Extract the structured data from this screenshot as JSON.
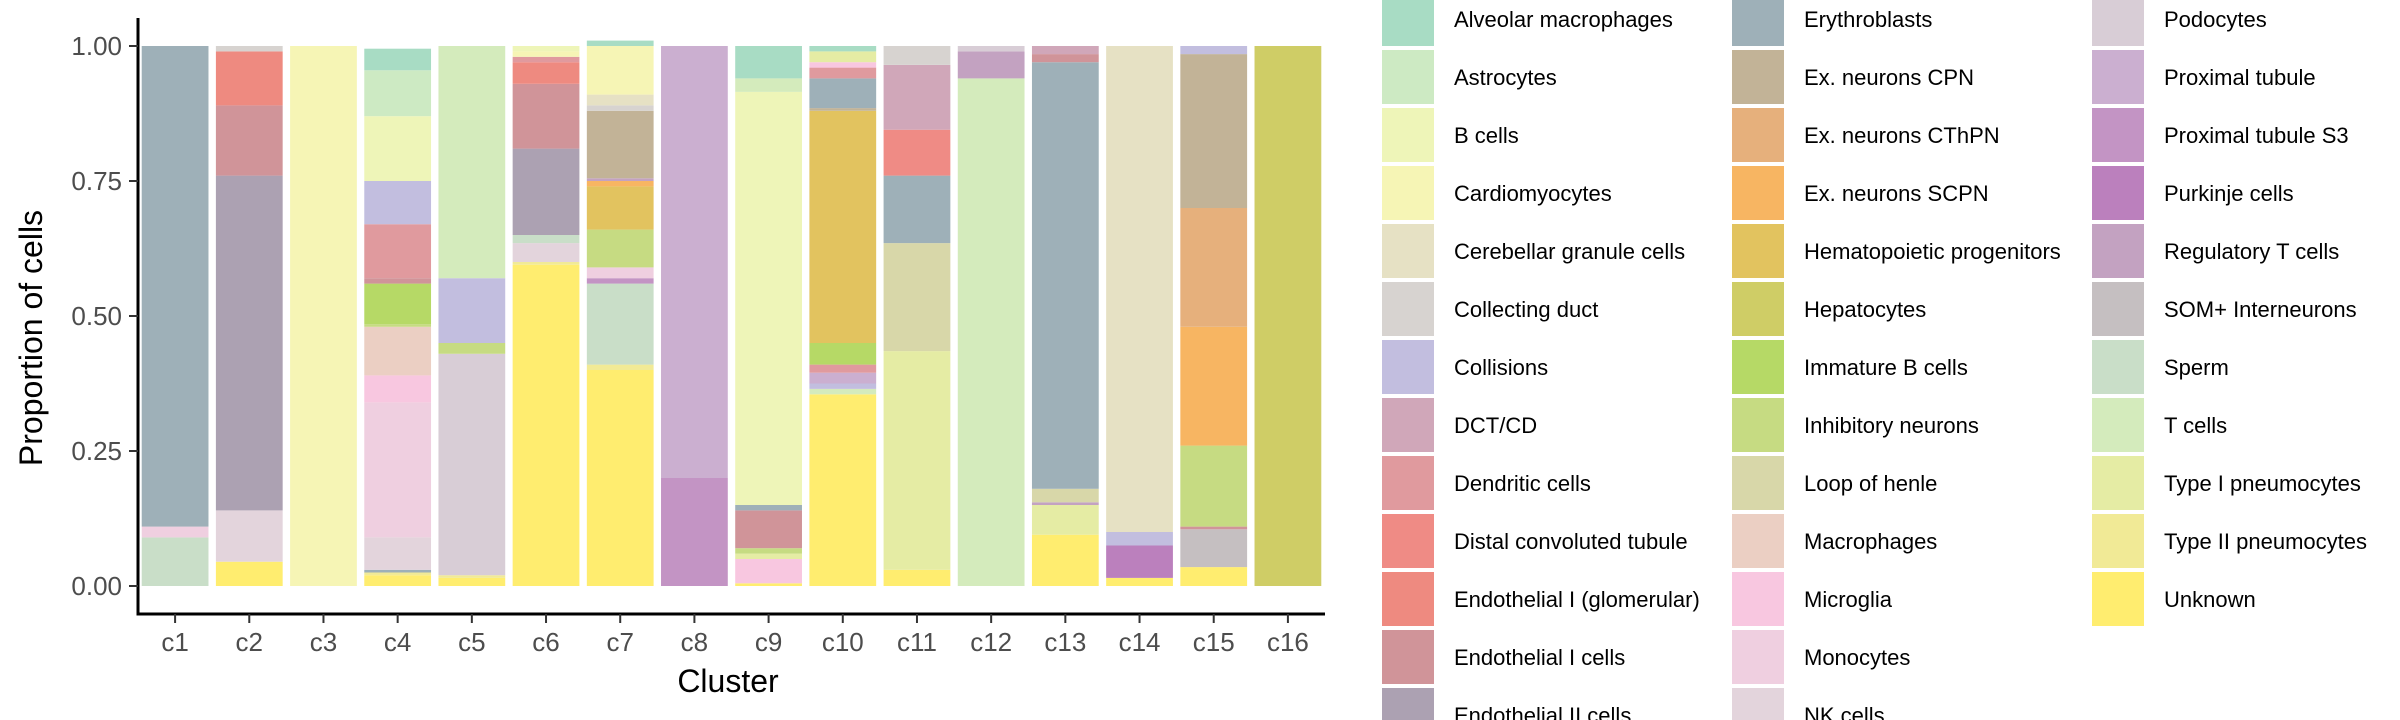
{
  "chart_data": {
    "type": "bar",
    "stacked": true,
    "title": "",
    "xlabel": "Cluster",
    "ylabel": "Proportion of cells",
    "ylim": [
      0,
      1
    ],
    "yticks": [
      0.0,
      0.25,
      0.5,
      0.75,
      1.0
    ],
    "ytick_labels": [
      "0.00",
      "0.25",
      "0.50",
      "0.75",
      "1.00"
    ],
    "grid": false,
    "legend_position": "right",
    "categories": [
      "c1",
      "c2",
      "c3",
      "c4",
      "c5",
      "c6",
      "c7",
      "c8",
      "c9",
      "c10",
      "c11",
      "c12",
      "c13",
      "c14",
      "c15",
      "c16"
    ],
    "cell_types": [
      {
        "name": "Alveolar macrophages",
        "color": "#a8dcc4"
      },
      {
        "name": "Astrocytes",
        "color": "#cdeac3"
      },
      {
        "name": "B cells",
        "color": "#eef5b8"
      },
      {
        "name": "Cardiomyocytes",
        "color": "#f6f5b5"
      },
      {
        "name": "Cerebellar granule cells",
        "color": "#e6e1c4"
      },
      {
        "name": "Collecting duct",
        "color": "#d7d3d0"
      },
      {
        "name": "Collisions",
        "color": "#c2bedf"
      },
      {
        "name": "DCT/CD",
        "color": "#d0a7b9"
      },
      {
        "name": "Dendritic cells",
        "color": "#e09a9e"
      },
      {
        "name": "Distal convoluted tubule",
        "color": "#ef8b85"
      },
      {
        "name": "Endothelial I (glomerular)",
        "color": "#ee8a80"
      },
      {
        "name": "Endothelial I cells",
        "color": "#d09499"
      },
      {
        "name": "Endothelial II cells",
        "color": "#aca1b2"
      },
      {
        "name": "Erythroblasts",
        "color": "#9eb0b8"
      },
      {
        "name": "Ex. neurons CPN",
        "color": "#c2b397"
      },
      {
        "name": "Ex. neurons CThPN",
        "color": "#e6b07c"
      },
      {
        "name": "Ex. neurons SCPN",
        "color": "#f7b562"
      },
      {
        "name": "Hematopoietic progenitors",
        "color": "#e2c35f"
      },
      {
        "name": "Hepatocytes",
        "color": "#cfcd66"
      },
      {
        "name": "Immature B cells",
        "color": "#b6d966"
      },
      {
        "name": "Inhibitory neurons",
        "color": "#c6db82"
      },
      {
        "name": "Loop of henle",
        "color": "#d8d7a9"
      },
      {
        "name": "Macrophages",
        "color": "#ebcfc3"
      },
      {
        "name": "Microglia",
        "color": "#f8c7e0"
      },
      {
        "name": "Monocytes",
        "color": "#efcfe0"
      },
      {
        "name": "NK cells",
        "color": "#e3d4dc"
      },
      {
        "name": "Podocytes",
        "color": "#d8cdd6"
      },
      {
        "name": "Proximal tubule",
        "color": "#cbafd0"
      },
      {
        "name": "Proximal tubule S3",
        "color": "#c394c4"
      },
      {
        "name": "Purkinje cells",
        "color": "#bb80bd"
      },
      {
        "name": "Regulatory T cells",
        "color": "#c3a2c1"
      },
      {
        "name": "SOM+ Interneurons",
        "color": "#c5bfc1"
      },
      {
        "name": "Sperm",
        "color": "#c9dec8"
      },
      {
        "name": "T cells",
        "color": "#d4ebbc"
      },
      {
        "name": "Type I pneumocytes",
        "color": "#e5eca4"
      },
      {
        "name": "Type II pneumocytes",
        "color": "#f1ea96"
      },
      {
        "name": "Unknown",
        "color": "#ffed6f"
      }
    ],
    "stacks": [
      {
        "cluster": "c1",
        "segments": [
          {
            "type": "Sperm",
            "value": 0.09
          },
          {
            "type": "Monocytes",
            "value": 0.02
          },
          {
            "type": "Erythroblasts",
            "value": 0.89
          }
        ]
      },
      {
        "cluster": "c2",
        "segments": [
          {
            "type": "Unknown",
            "value": 0.045
          },
          {
            "type": "NK cells",
            "value": 0.095
          },
          {
            "type": "Endothelial II cells",
            "value": 0.62
          },
          {
            "type": "Endothelial I cells",
            "value": 0.13
          },
          {
            "type": "Endothelial I (glomerular)",
            "value": 0.1
          },
          {
            "type": "Collecting duct",
            "value": 0.01
          }
        ]
      },
      {
        "cluster": "c3",
        "segments": [
          {
            "type": "Cardiomyocytes",
            "value": 1.0
          }
        ]
      },
      {
        "cluster": "c4",
        "segments": [
          {
            "type": "Unknown",
            "value": 0.02
          },
          {
            "type": "Type II pneumocytes",
            "value": 0.005
          },
          {
            "type": "Erythroblasts",
            "value": 0.005
          },
          {
            "type": "NK cells",
            "value": 0.06
          },
          {
            "type": "Monocytes",
            "value": 0.25
          },
          {
            "type": "Microglia",
            "value": 0.05
          },
          {
            "type": "Macrophages",
            "value": 0.09
          },
          {
            "type": "Inhibitory neurons",
            "value": 0.005
          },
          {
            "type": "Immature B cells",
            "value": 0.075
          },
          {
            "type": "Endothelial I cells",
            "value": 0.01
          },
          {
            "type": "Dendritic cells",
            "value": 0.1
          },
          {
            "type": "Collisions",
            "value": 0.08
          },
          {
            "type": "B cells",
            "value": 0.12
          },
          {
            "type": "Astrocytes",
            "value": 0.085
          },
          {
            "type": "Alveolar macrophages",
            "value": 0.04
          }
        ]
      },
      {
        "cluster": "c5",
        "segments": [
          {
            "type": "Unknown",
            "value": 0.015
          },
          {
            "type": "Type II pneumocytes",
            "value": 0.005
          },
          {
            "type": "Podocytes",
            "value": 0.41
          },
          {
            "type": "Inhibitory neurons",
            "value": 0.02
          },
          {
            "type": "Collisions",
            "value": 0.12
          },
          {
            "type": "T cells",
            "value": 0.43
          }
        ]
      },
      {
        "cluster": "c6",
        "segments": [
          {
            "type": "Unknown",
            "value": 0.595
          },
          {
            "type": "Type II pneumocytes",
            "value": 0.005
          },
          {
            "type": "NK cells",
            "value": 0.035
          },
          {
            "type": "Sperm",
            "value": 0.015
          },
          {
            "type": "Endothelial II cells",
            "value": 0.16
          },
          {
            "type": "Endothelial I cells",
            "value": 0.12
          },
          {
            "type": "Endothelial I (glomerular)",
            "value": 0.04
          },
          {
            "type": "Dendritic cells",
            "value": 0.01
          },
          {
            "type": "Cardiomyocytes",
            "value": 0.01
          },
          {
            "type": "B cells",
            "value": 0.01
          }
        ]
      },
      {
        "cluster": "c7",
        "segments": [
          {
            "type": "Unknown",
            "value": 0.4
          },
          {
            "type": "Type II pneumocytes",
            "value": 0.01
          },
          {
            "type": "Sperm",
            "value": 0.15
          },
          {
            "type": "Proximal tubule S3",
            "value": 0.01
          },
          {
            "type": "Monocytes",
            "value": 0.02
          },
          {
            "type": "Inhibitory neurons",
            "value": 0.07
          },
          {
            "type": "Hematopoietic progenitors",
            "value": 0.08
          },
          {
            "type": "Ex. neurons SCPN",
            "value": 0.01
          },
          {
            "type": "Regulatory T cells",
            "value": 0.005
          },
          {
            "type": "Ex. neurons CPN",
            "value": 0.125
          },
          {
            "type": "Collecting duct",
            "value": 0.01
          },
          {
            "type": "Cerebellar granule cells",
            "value": 0.02
          },
          {
            "type": "Cardiomyocytes",
            "value": 0.09
          },
          {
            "type": "B cells",
            "value": 0.0
          },
          {
            "type": "Alveolar macrophages",
            "value": 0.01
          }
        ]
      },
      {
        "cluster": "c8",
        "segments": [
          {
            "type": "Proximal tubule S3",
            "value": 0.2
          },
          {
            "type": "Proximal tubule",
            "value": 0.8
          }
        ]
      },
      {
        "cluster": "c9",
        "segments": [
          {
            "type": "Unknown",
            "value": 0.005
          },
          {
            "type": "Microglia",
            "value": 0.045
          },
          {
            "type": "Type I pneumocytes",
            "value": 0.01
          },
          {
            "type": "Inhibitory neurons",
            "value": 0.01
          },
          {
            "type": "Endothelial I cells",
            "value": 0.07
          },
          {
            "type": "Erythroblasts",
            "value": 0.01
          },
          {
            "type": "B cells",
            "value": 0.765
          },
          {
            "type": "T cells",
            "value": 0.025
          },
          {
            "type": "Alveolar macrophages",
            "value": 0.06
          }
        ]
      },
      {
        "cluster": "c10",
        "segments": [
          {
            "type": "Unknown",
            "value": 0.355
          },
          {
            "type": "T cells",
            "value": 0.01
          },
          {
            "type": "Collisions",
            "value": 0.01
          },
          {
            "type": "Proximal tubule",
            "value": 0.02
          },
          {
            "type": "Dendritic cells",
            "value": 0.015
          },
          {
            "type": "Immature B cells",
            "value": 0.04
          },
          {
            "type": "Hematopoietic progenitors",
            "value": 0.43
          },
          {
            "type": "Ex. neurons CPN",
            "value": 0.005
          },
          {
            "type": "Erythroblasts",
            "value": 0.055
          },
          {
            "type": "Dendritic cells",
            "value": 0.02
          },
          {
            "type": "Microglia",
            "value": 0.01
          },
          {
            "type": "Type I pneumocytes",
            "value": 0.02
          },
          {
            "type": "Alveolar macrophages",
            "value": 0.01
          }
        ]
      },
      {
        "cluster": "c11",
        "segments": [
          {
            "type": "Unknown",
            "value": 0.03
          },
          {
            "type": "Type I pneumocytes",
            "value": 0.405
          },
          {
            "type": "Loop of henle",
            "value": 0.2
          },
          {
            "type": "Ex. neurons CPN",
            "value": 0.0
          },
          {
            "type": "Erythroblasts",
            "value": 0.0
          },
          {
            "type": "Hematopoietic progenitors",
            "value": 0.0
          },
          {
            "type": "Proximal tubule",
            "value": 0.0
          },
          {
            "type": "Collisions",
            "value": 0.0
          },
          {
            "type": "Endothelial II cells",
            "value": 0.0
          },
          {
            "type": "Erythroblasts",
            "value": 0.125
          },
          {
            "type": "Distal convoluted tubule",
            "value": 0.085
          },
          {
            "type": "DCT/CD",
            "value": 0.12
          },
          {
            "type": "Collecting duct",
            "value": 0.035
          }
        ]
      },
      {
        "cluster": "c12",
        "segments": [
          {
            "type": "T cells",
            "value": 0.94
          },
          {
            "type": "Regulatory T cells",
            "value": 0.05
          },
          {
            "type": "Podocytes",
            "value": 0.01
          }
        ]
      },
      {
        "cluster": "c13",
        "segments": [
          {
            "type": "Unknown",
            "value": 0.095
          },
          {
            "type": "Type I pneumocytes",
            "value": 0.055
          },
          {
            "type": "Regulatory T cells",
            "value": 0.005
          },
          {
            "type": "Loop of henle",
            "value": 0.025
          },
          {
            "type": "Erythroblasts",
            "value": 0.79
          },
          {
            "type": "Endothelial I cells",
            "value": 0.015
          },
          {
            "type": "DCT/CD",
            "value": 0.015
          }
        ]
      },
      {
        "cluster": "c14",
        "segments": [
          {
            "type": "Unknown",
            "value": 0.015
          },
          {
            "type": "Purkinje cells",
            "value": 0.06
          },
          {
            "type": "Collisions",
            "value": 0.025
          },
          {
            "type": "Cerebellar granule cells",
            "value": 0.9
          }
        ]
      },
      {
        "cluster": "c15",
        "segments": [
          {
            "type": "Unknown",
            "value": 0.035
          },
          {
            "type": "SOM+ Interneurons",
            "value": 0.07
          },
          {
            "type": "Endothelial I cells",
            "value": 0.005
          },
          {
            "type": "Inhibitory neurons",
            "value": 0.15
          },
          {
            "type": "Ex. neurons SCPN",
            "value": 0.22
          },
          {
            "type": "Ex. neurons CThPN",
            "value": 0.22
          },
          {
            "type": "Ex. neurons CPN",
            "value": 0.285
          },
          {
            "type": "Collisions",
            "value": 0.015
          }
        ]
      },
      {
        "cluster": "c16",
        "segments": [
          {
            "type": "Hepatocytes",
            "value": 1.0
          }
        ]
      }
    ]
  }
}
